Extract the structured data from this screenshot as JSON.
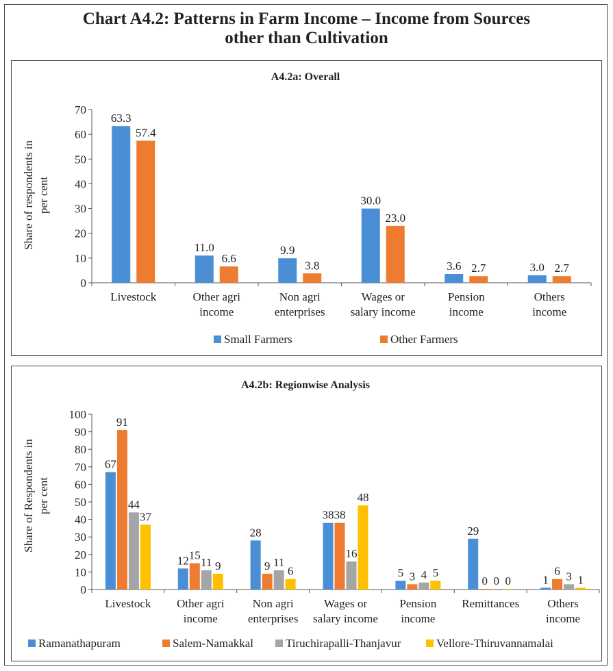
{
  "page_title_line1": "Chart A4.2: Patterns in Farm Income – Income from Sources",
  "page_title_line2": "other than Cultivation",
  "chart_data": [
    {
      "type": "bar",
      "title": "A4.2a: Overall",
      "ylabel": [
        "Share of respondents in",
        "per cent"
      ],
      "ylim": [
        0,
        70
      ],
      "yticks": [
        0,
        10,
        20,
        30,
        40,
        50,
        60,
        70
      ],
      "categories": [
        [
          "Livestock"
        ],
        [
          "Other agri",
          "income"
        ],
        [
          "Non agri",
          "enterprises"
        ],
        [
          "Wages or",
          "salary income"
        ],
        [
          "Pension",
          "income"
        ],
        [
          "Others",
          "income"
        ]
      ],
      "series": [
        {
          "name": "Small Farmers",
          "color": "#4a8fd6",
          "values": [
            63.3,
            11.0,
            9.9,
            30.0,
            3.6,
            3.0
          ],
          "labels": [
            "63.3",
            "11.0",
            "9.9",
            "30.0",
            "3.6",
            "3.0"
          ]
        },
        {
          "name": "Other Farmers",
          "color": "#ee7b30",
          "values": [
            57.4,
            6.6,
            3.8,
            23.0,
            2.7,
            2.7
          ],
          "labels": [
            "57.4",
            "6.6",
            "3.8",
            "23.0",
            "2.7",
            "2.7"
          ]
        }
      ],
      "legend": "bottom",
      "grid": false
    },
    {
      "type": "bar",
      "title": "A4.2b: Regionwise Analysis",
      "ylabel": [
        "Share of Respondents in",
        "per cent"
      ],
      "ylim": [
        0,
        100
      ],
      "yticks": [
        0,
        10,
        20,
        30,
        40,
        50,
        60,
        70,
        80,
        90,
        100
      ],
      "categories": [
        [
          "Livestock"
        ],
        [
          "Other agri",
          "income"
        ],
        [
          "Non agri",
          "enterprises"
        ],
        [
          "Wages or",
          "salary income"
        ],
        [
          "Pension",
          "income"
        ],
        [
          "Remittances"
        ],
        [
          "Others",
          "income"
        ]
      ],
      "series": [
        {
          "name": "Ramanathapuram",
          "color": "#4a8fd6",
          "values": [
            67,
            12,
            28,
            38,
            5,
            29,
            1
          ],
          "labels": [
            "67",
            "12",
            "28",
            "38",
            "5",
            "29",
            "1"
          ]
        },
        {
          "name": "Salem-Namakkal",
          "color": "#ee7b30",
          "values": [
            91,
            15,
            9,
            38,
            3,
            0,
            6
          ],
          "labels": [
            "91",
            "15",
            "9",
            "38",
            "3",
            "0",
            "6"
          ]
        },
        {
          "name": "Tiruchirapalli-Thanjavur",
          "color": "#a5a5a5",
          "values": [
            44,
            11,
            11,
            16,
            4,
            0,
            3
          ],
          "labels": [
            "44",
            "11",
            "11",
            "16",
            "4",
            "0",
            "3"
          ]
        },
        {
          "name": "Vellore-Thiruvannamalai",
          "color": "#ffc000",
          "values": [
            37,
            9,
            6,
            48,
            5,
            0,
            1
          ],
          "labels": [
            "37",
            "9",
            "6",
            "48",
            "5",
            "0",
            "1"
          ]
        }
      ],
      "legend": "bottom",
      "grid": false
    }
  ]
}
